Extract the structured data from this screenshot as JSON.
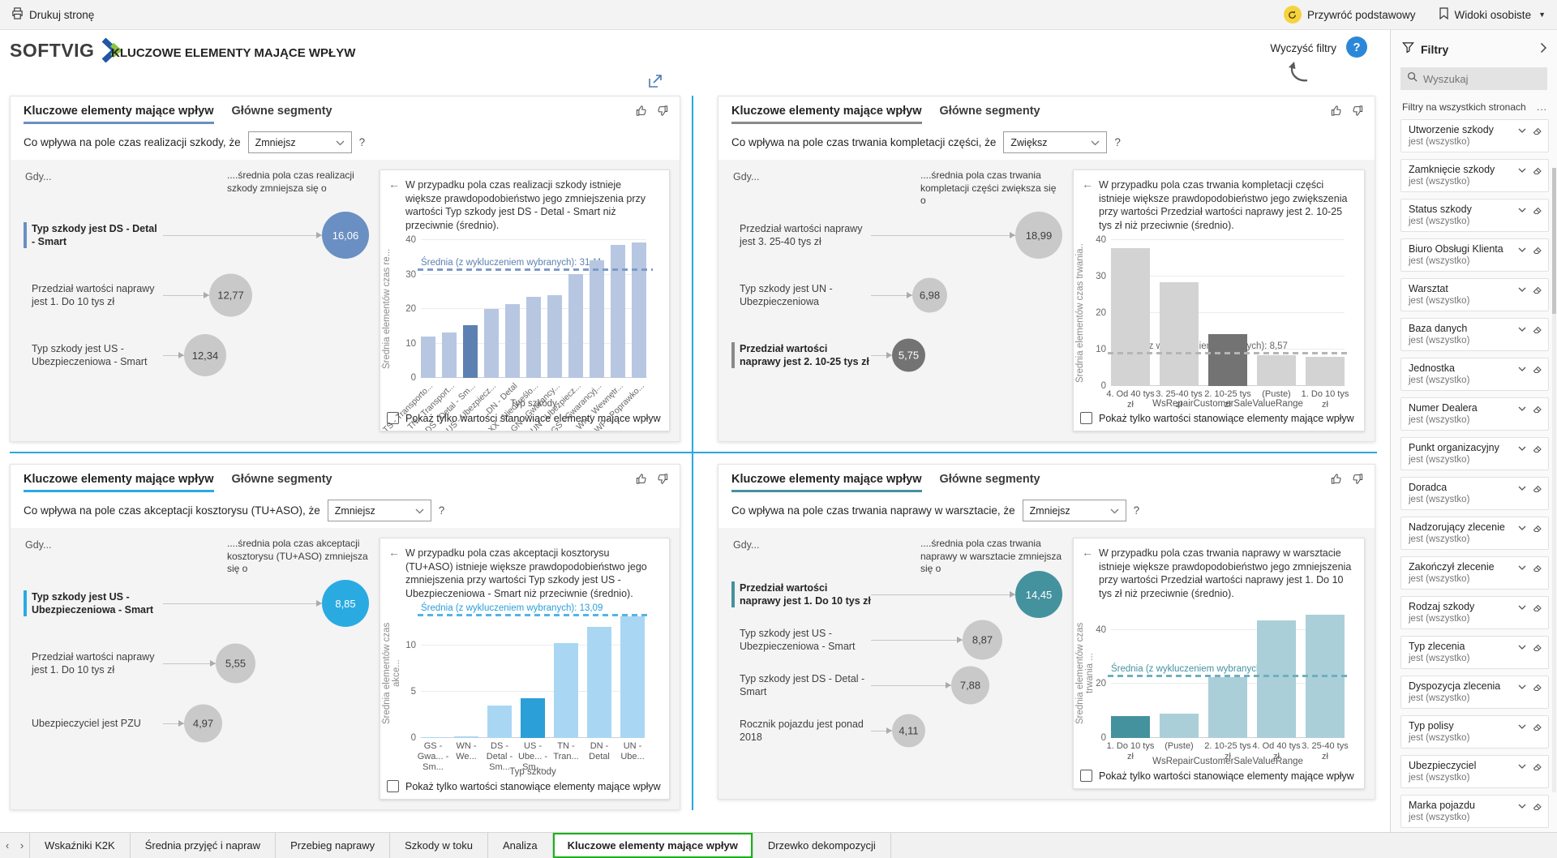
{
  "top_bar": {
    "print_label": "Drukuj stronę",
    "restore_label": "Przywróć podstawowy",
    "personal_views_label": "Widoki osobiste"
  },
  "header": {
    "logo_text": "SOFTVIG",
    "title": "KLUCZOWE ELEMENTY MAJĄCE WPŁYW",
    "clear_filters_label": "Wyczyść filtry",
    "help_glyph": "?",
    "info_glyph": "i"
  },
  "panels": [
    {
      "tab_active": "Kluczowe elementy mające wpływ",
      "tab_inactive": "Główne segmenty",
      "question": "Co wpływa na pole czas realizacji szkody, że",
      "dropdown_value": "Zmniejsz",
      "question_suffix": "?",
      "when_label": "Gdy...",
      "effect_label": "....średnia pola czas realizacji szkody zmniejsza się o",
      "accent": "#6a8fc2",
      "bubble_gray": "#c9c9c9",
      "bubble_selected": "#6a8fc2",
      "influencers": [
        {
          "label": "Typ szkody jest DS - Detal - Smart",
          "value": "16,06",
          "selected": true
        },
        {
          "label": "Przedział wartości naprawy jest 1. Do 10 tys zł",
          "value": "12,77",
          "selected": false
        },
        {
          "label": "Typ szkody jest US - Ubezpieczeniowa - Smart",
          "value": "12,34",
          "selected": false
        }
      ],
      "chart": {
        "type": "bar",
        "description": "W przypadku pola czas realizacji szkody istnieje większe prawdopodobieństwo jego zmniejszenia przy wartości Typ szkody jest DS - Detal - Smart niż przeciwnie (średnio).",
        "y_label": "Średnia elementów czas re...",
        "y_ticks": [
          0,
          10,
          20,
          30,
          40
        ],
        "y_max": 40,
        "avg_value": 31.11,
        "avg_label": "Średnia (z wykluczeniem wybranych): 31,11",
        "bar_color": "#b7c7e2",
        "selected_bar_color": "#5d80b2",
        "avg_color": "#7d9bca",
        "avg_label_color": "#5d80b2",
        "categories": [
          "TS - Transporto...",
          "TN - Transport...",
          "DS - Detal - Sm...",
          "US - Ubezpiecz...",
          "DN - Detal",
          "XX - Nieokreślo...",
          "GN - Gwarancy...",
          "UN - Ubezpiecz...",
          "GS - Gwarancyj...",
          "WN - Wewnętr...",
          "WP - Poprawko..."
        ],
        "values": [
          12.1,
          13.2,
          15.3,
          20.0,
          21.3,
          23.6,
          24.0,
          30.1,
          34.2,
          38.5,
          39.3
        ],
        "selected_index": 2,
        "x_title": "Typ szkody",
        "checkbox_label": "Pokaż tylko wartości stanowiące elementy mające wpływ"
      }
    },
    {
      "tab_active": "Kluczowe elementy mające wpływ",
      "tab_inactive": "Główne segmenty",
      "question": "Co wpływa na pole czas trwania kompletacji części, że",
      "dropdown_value": "Zwiększ",
      "question_suffix": "?",
      "when_label": "Gdy...",
      "effect_label": "....średnia pola czas trwania kompletacji części zwiększa się o",
      "accent": "#8a8a8a",
      "bubble_gray": "#c9c9c9",
      "bubble_selected": "#737373",
      "influencers": [
        {
          "label": "Przedział wartości naprawy jest 3. 25-40 tys zł",
          "value": "18,99",
          "selected": false
        },
        {
          "label": "Typ szkody jest UN - Ubezpieczeniowa",
          "value": "6,98",
          "selected": false
        },
        {
          "label": "Przedział wartości naprawy jest 2. 10-25 tys zł",
          "value": "5,75",
          "selected": true
        }
      ],
      "chart": {
        "type": "bar",
        "description": "W przypadku pola czas trwania kompletacji części istnieje większe prawdopodobieństwo jego zwiększenia przy wartości Przedział wartości naprawy jest 2. 10-25 tys zł niż przeciwnie (średnio).",
        "y_label": "Średnia elementów czas trwania..",
        "y_ticks": [
          0,
          10,
          20,
          30,
          40
        ],
        "y_max": 40,
        "avg_value": 8.57,
        "avg_label": "Średnia (z wykluczeniem wybranych): 8,57",
        "bar_color": "#d3d3d3",
        "selected_bar_color": "#737373",
        "avg_color": "#b5b5b5",
        "avg_label_color": "#666666",
        "categories": [
          "4. Od 40 tys zł",
          "3. 25-40 tys zł",
          "2. 10-25 tys zł",
          "(Puste)",
          "1. Do 10 tys zł"
        ],
        "values": [
          37.8,
          28.5,
          14.3,
          8.5,
          8.0
        ],
        "selected_index": 2,
        "x_title": "WsRepairCustomerSaleValueRange",
        "checkbox_label": "Pokaż tylko wartości stanowiące elementy mające wpływ"
      }
    },
    {
      "tab_active": "Kluczowe elementy mające wpływ",
      "tab_inactive": "Główne segmenty",
      "question": "Co wpływa na pole czas akceptacji kosztorysu (TU+ASO), że",
      "dropdown_value": "Zmniejsz",
      "question_suffix": "?",
      "when_label": "Gdy...",
      "effect_label": "....średnia pola czas akceptacji kosztorysu (TU+ASO) zmniejsza się o",
      "accent": "#29abe2",
      "bubble_gray": "#c9c9c9",
      "bubble_selected": "#29abe2",
      "influencers": [
        {
          "label": "Typ szkody jest US - Ubezpieczeniowa - Smart",
          "value": "8,85",
          "selected": true
        },
        {
          "label": "Przedział wartości naprawy jest 1. Do 10 tys zł",
          "value": "5,55",
          "selected": false
        },
        {
          "label": "Ubezpieczyciel jest PZU",
          "value": "4,97",
          "selected": false
        }
      ],
      "chart": {
        "type": "bar",
        "description": "W przypadku pola czas akceptacji kosztorysu (TU+ASO) istnieje większe prawdopodobieństwo jego zmniejszenia przy wartości Typ szkody jest US - Ubezpieczeniowa - Smart niż przeciwnie (średnio).",
        "y_label": "Średnia elementów czas akce...",
        "y_ticks": [
          0,
          5,
          10
        ],
        "y_max": 14,
        "avg_value": 13.09,
        "avg_label": "Średnia (z wykluczeniem wybranych): 13,09",
        "bar_color": "#a9d7f3",
        "selected_bar_color": "#2b9fd8",
        "avg_color": "#56b4e5",
        "avg_label_color": "#2b9fd8",
        "categories": [
          "GS - Gwa... - Sm...",
          "WN - We...",
          "DS - Detal - Sm...",
          "US - Ube... - Sm...",
          "TN - Tran...",
          "DN - Detal",
          "UN - Ube..."
        ],
        "values": [
          0.1,
          0.2,
          3.5,
          4.3,
          10.2,
          12.0,
          13.1
        ],
        "selected_index": 3,
        "x_title": "Typ szkody",
        "checkbox_label": "Pokaż tylko wartości stanowiące elementy mające wpływ"
      }
    },
    {
      "tab_active": "Kluczowe elementy mające wpływ",
      "tab_inactive": "Główne segmenty",
      "question": "Co wpływa na pole czas trwania naprawy w warsztacie, że",
      "dropdown_value": "Zmniejsz",
      "question_suffix": "?",
      "when_label": "Gdy...",
      "effect_label": "....średnia pola czas trwania naprawy w warsztacie zmniejsza się o",
      "accent": "#45929f",
      "bubble_gray": "#c9c9c9",
      "bubble_selected": "#45929f",
      "influencers": [
        {
          "label": "Przedział wartości naprawy jest 1. Do 10 tys zł",
          "value": "14,45",
          "selected": true
        },
        {
          "label": "Typ szkody jest US - Ubezpieczeniowa - Smart",
          "value": "8,87",
          "selected": false
        },
        {
          "label": "Typ szkody jest DS - Detal - Smart",
          "value": "7,88",
          "selected": false
        },
        {
          "label": "Rocznik pojazdu jest ponad 2018",
          "value": "4,11",
          "selected": false
        }
      ],
      "chart": {
        "type": "bar",
        "description": "W przypadku pola czas trwania naprawy w warsztacie istnieje większe prawdopodobieństwo jego zmniejszenia przy wartości Przedział wartości naprawy jest 1. Do 10 tys zł niż przeciwnie (średnio).",
        "y_label": "Średnia elementów czas trwania ...",
        "y_ticks": [
          0,
          20,
          40
        ],
        "y_max": 48,
        "avg_value": 22.44,
        "avg_label": "Średnia (z wykluczeniem wybranych): 22,44",
        "bar_color": "#abcfd9",
        "selected_bar_color": "#45929f",
        "avg_color": "#6fb0bc",
        "avg_label_color": "#45929f",
        "categories": [
          "1. Do 10 tys zł",
          "(Puste)",
          "2. 10-25 tys zł",
          "4. Od 40 tys zł",
          "3. 25-40 tys zł"
        ],
        "values": [
          8.1,
          8.9,
          22.5,
          43.5,
          45.5
        ],
        "selected_index": 0,
        "x_title": "WsRepairCustomerSaleValueRange",
        "checkbox_label": "Pokaż tylko wartości stanowiące elementy mające wpływ"
      }
    }
  ],
  "filters_pane": {
    "title": "Filtry",
    "search_placeholder": "Wyszukaj",
    "section_label": "Filtry na wszystkich stronach",
    "more_glyph": "...",
    "condition": "jest (wszystko)",
    "items": [
      "Utworzenie szkody",
      "Zamknięcie szkody",
      "Status szkody",
      "Biuro Obsługi Klienta",
      "Warsztat",
      "Baza danych",
      "Jednostka",
      "Numer Dealera",
      "Punkt organizacyjny",
      "Doradca",
      "Nadzorujący zlecenie",
      "Zakończył zlecenie",
      "Rodzaj szkody",
      "Typ zlecenia",
      "Dyspozycja zlecenia",
      "Typ polisy",
      "Ubezpieczyciel",
      "Marka pojazdu"
    ]
  },
  "tab_bar": {
    "tabs": [
      "Wskaźniki K2K",
      "Średnia przyjęć i napraw",
      "Przebieg naprawy",
      "Szkody w toku",
      "Analiza",
      "Kluczowe elementy mające wpływ",
      "Drzewko dekompozycji"
    ],
    "active_index": 5
  }
}
